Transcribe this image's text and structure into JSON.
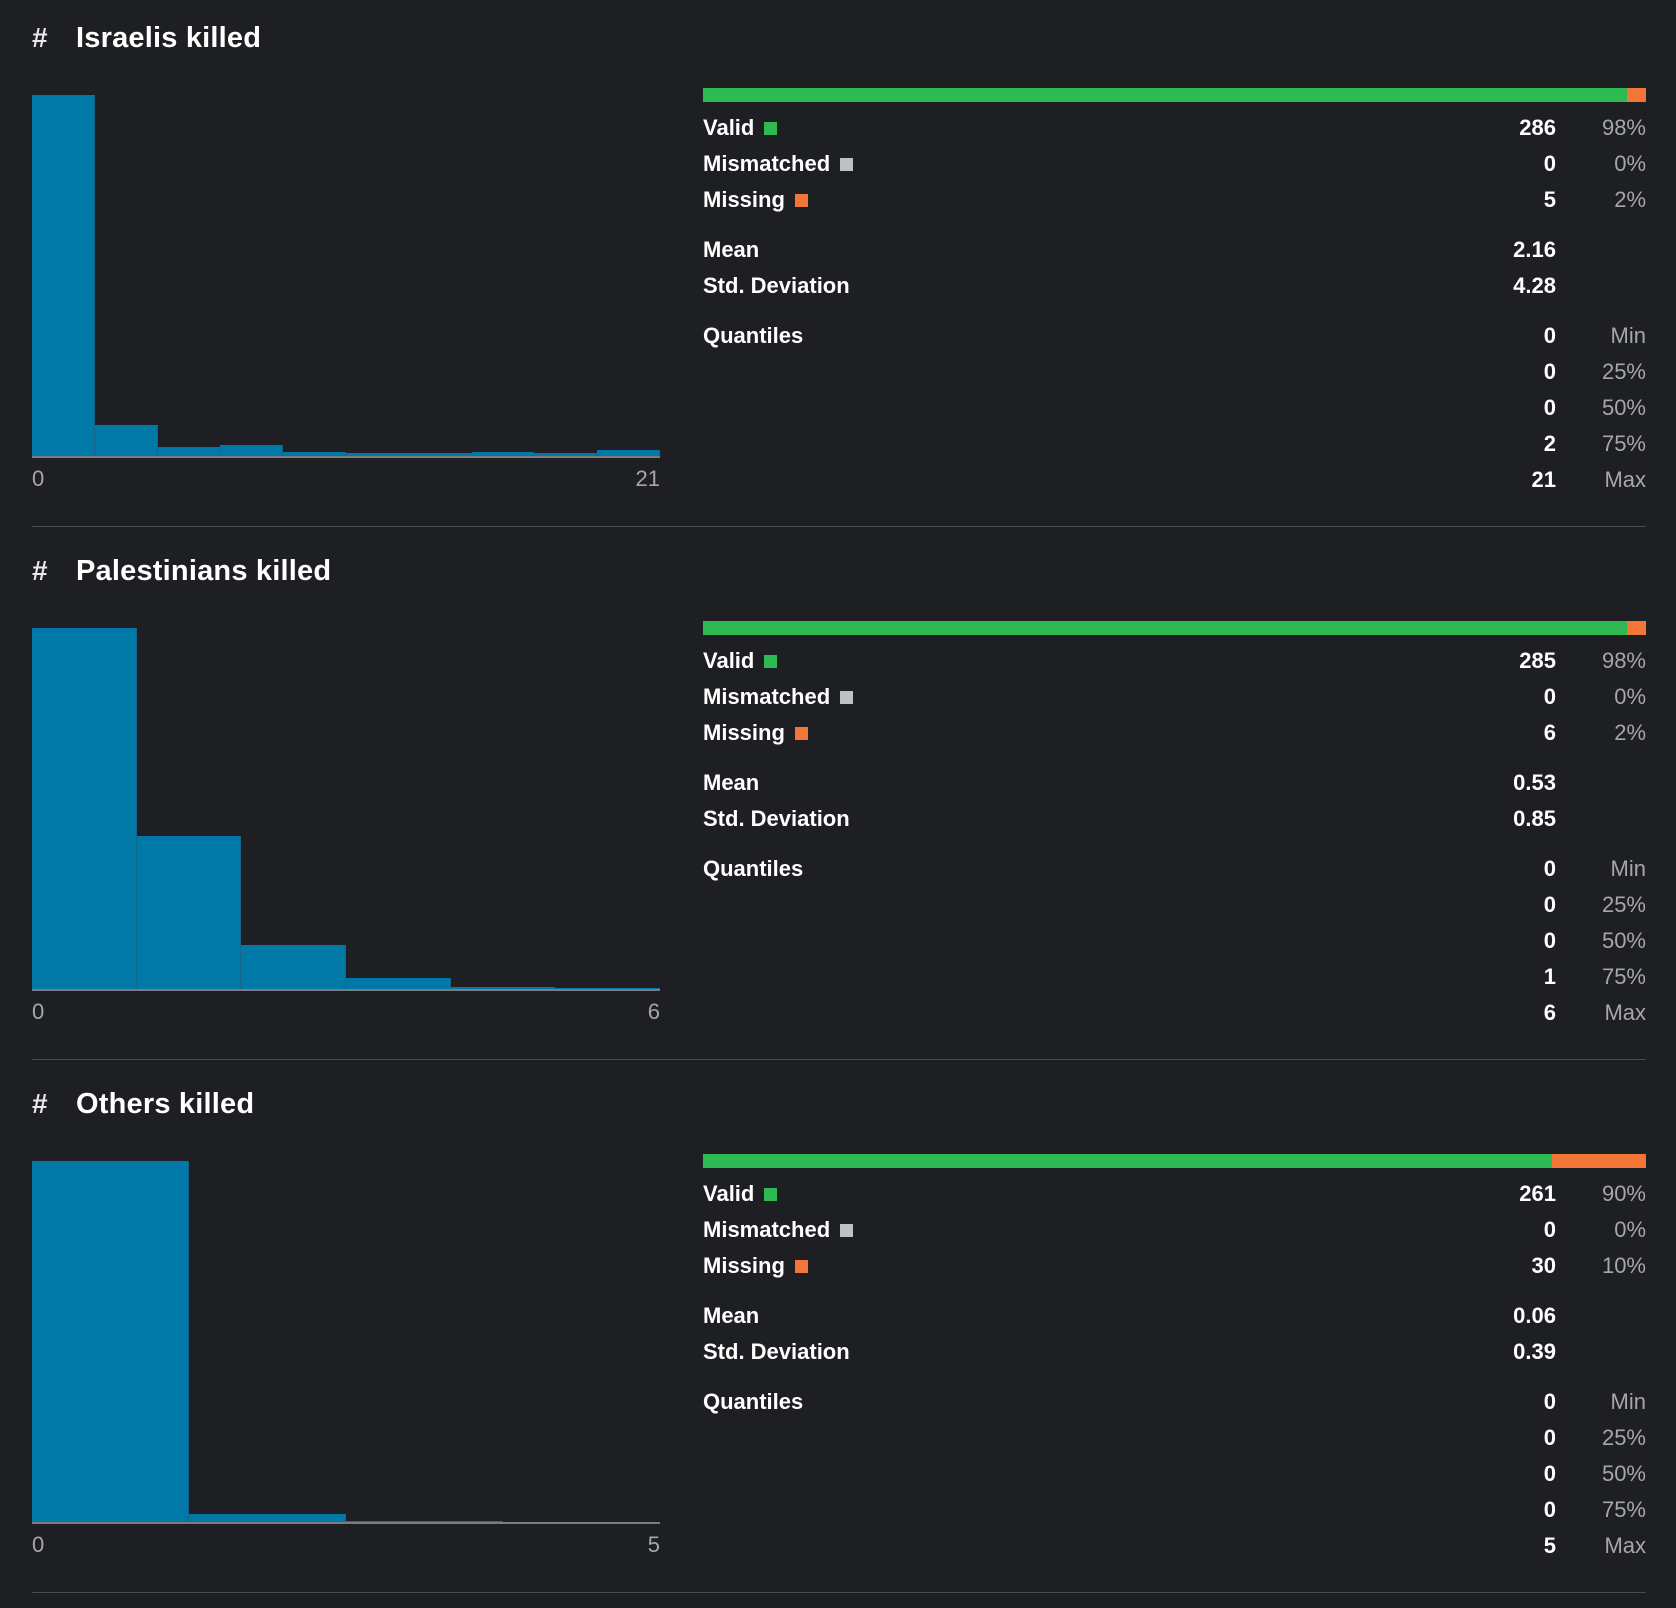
{
  "colors": {
    "background": "#1e1f23",
    "histogram_bar": "#0179a8",
    "valid": "#2fb953",
    "mismatched": "#bfc0c2",
    "missing": "#f27637"
  },
  "columns": [
    {
      "type_icon": "hash-icon",
      "name": "Israelis killed",
      "quality": {
        "valid": {
          "label": "Valid",
          "count": "286",
          "pct": "98%",
          "fraction": 0.98
        },
        "mismatched": {
          "label": "Mismatched",
          "count": "0",
          "pct": "0%",
          "fraction": 0.0
        },
        "missing": {
          "label": "Missing",
          "count": "5",
          "pct": "2%",
          "fraction": 0.02
        }
      },
      "stats": {
        "mean": {
          "label": "Mean",
          "value": "2.16"
        },
        "std": {
          "label": "Std. Deviation",
          "value": "4.28"
        }
      },
      "quantiles_label": "Quantiles",
      "quantiles": [
        {
          "value": "0",
          "label": "Min"
        },
        {
          "value": "0",
          "label": "25%"
        },
        {
          "value": "0",
          "label": "50%"
        },
        {
          "value": "2",
          "label": "75%"
        },
        {
          "value": "21",
          "label": "Max"
        }
      ],
      "chart_data": {
        "type": "bar",
        "x_min": "0",
        "x_max": "21",
        "values": [
          1.0,
          0.088,
          0.028,
          0.032,
          0.015,
          0.01,
          0.01,
          0.015,
          0.01,
          0.018
        ]
      }
    },
    {
      "type_icon": "hash-icon",
      "name": "Palestinians killed",
      "quality": {
        "valid": {
          "label": "Valid",
          "count": "285",
          "pct": "98%",
          "fraction": 0.98
        },
        "mismatched": {
          "label": "Mismatched",
          "count": "0",
          "pct": "0%",
          "fraction": 0.0
        },
        "missing": {
          "label": "Missing",
          "count": "6",
          "pct": "2%",
          "fraction": 0.02
        }
      },
      "stats": {
        "mean": {
          "label": "Mean",
          "value": "0.53"
        },
        "std": {
          "label": "Std. Deviation",
          "value": "0.85"
        }
      },
      "quantiles_label": "Quantiles",
      "quantiles": [
        {
          "value": "0",
          "label": "Min"
        },
        {
          "value": "0",
          "label": "25%"
        },
        {
          "value": "0",
          "label": "50%"
        },
        {
          "value": "1",
          "label": "75%"
        },
        {
          "value": "6",
          "label": "Max"
        }
      ],
      "chart_data": {
        "type": "bar",
        "x_min": "0",
        "x_max": "6",
        "values": [
          1.0,
          0.425,
          0.123,
          0.032,
          0.008,
          0.004
        ]
      }
    },
    {
      "type_icon": "hash-icon",
      "name": "Others killed",
      "quality": {
        "valid": {
          "label": "Valid",
          "count": "261",
          "pct": "90%",
          "fraction": 0.9
        },
        "mismatched": {
          "label": "Mismatched",
          "count": "0",
          "pct": "0%",
          "fraction": 0.0
        },
        "missing": {
          "label": "Missing",
          "count": "30",
          "pct": "10%",
          "fraction": 0.1
        }
      },
      "stats": {
        "mean": {
          "label": "Mean",
          "value": "0.06"
        },
        "std": {
          "label": "Std. Deviation",
          "value": "0.39"
        }
      },
      "quantiles_label": "Quantiles",
      "quantiles": [
        {
          "value": "0",
          "label": "Min"
        },
        {
          "value": "0",
          "label": "25%"
        },
        {
          "value": "0",
          "label": "50%"
        },
        {
          "value": "0",
          "label": "75%"
        },
        {
          "value": "5",
          "label": "Max"
        }
      ],
      "chart_data": {
        "type": "bar",
        "x_min": "0",
        "x_max": "5",
        "values": [
          1.0,
          0.025,
          0.005,
          0.0
        ]
      }
    }
  ]
}
